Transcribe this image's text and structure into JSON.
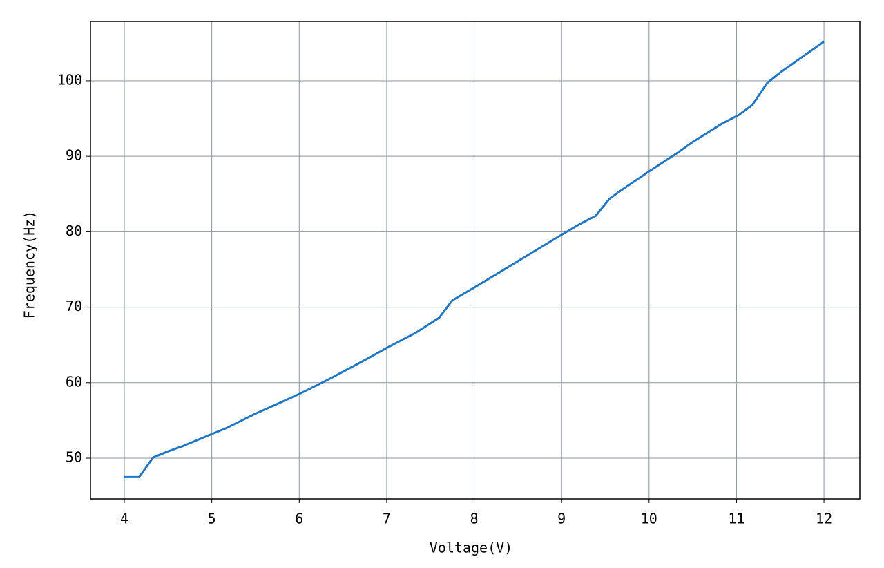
{
  "chart_data": {
    "type": "line",
    "x_label": "Voltage(V)",
    "y_label": "Frequency(Hz)",
    "x": [
      4,
      4.17,
      4.33,
      4.5,
      4.67,
      5,
      5.17,
      5.5,
      5.83,
      6,
      6.33,
      6.67,
      6.83,
      7,
      7.33,
      7.6,
      7.75,
      8,
      8.33,
      8.67,
      9,
      9.22,
      9.39,
      9.55,
      9.67,
      10,
      10.33,
      10.5,
      10.83,
      11.03,
      11.18,
      11.35,
      11.5,
      12
    ],
    "series": [
      {
        "name": "Frequency",
        "color": "#1f77c4",
        "values": [
          47.5,
          47.5,
          50.1,
          50.9,
          51.6,
          53.2,
          54.0,
          55.9,
          57.6,
          58.5,
          60.4,
          62.5,
          63.5,
          64.6,
          66.6,
          68.6,
          70.9,
          72.6,
          74.9,
          77.3,
          79.6,
          81.1,
          82.1,
          84.4,
          85.4,
          88.0,
          90.5,
          91.9,
          94.3,
          95.5,
          96.8,
          99.7,
          101.1,
          105.2
        ]
      }
    ],
    "xlim": [
      3.613,
      12.41
    ],
    "xticks": [
      4,
      5,
      6,
      7,
      8,
      9,
      10,
      11,
      12
    ],
    "ylim": [
      44.6,
      107.87
    ],
    "yticks": [
      50,
      60,
      70,
      80,
      90,
      100
    ],
    "grid": true
  }
}
